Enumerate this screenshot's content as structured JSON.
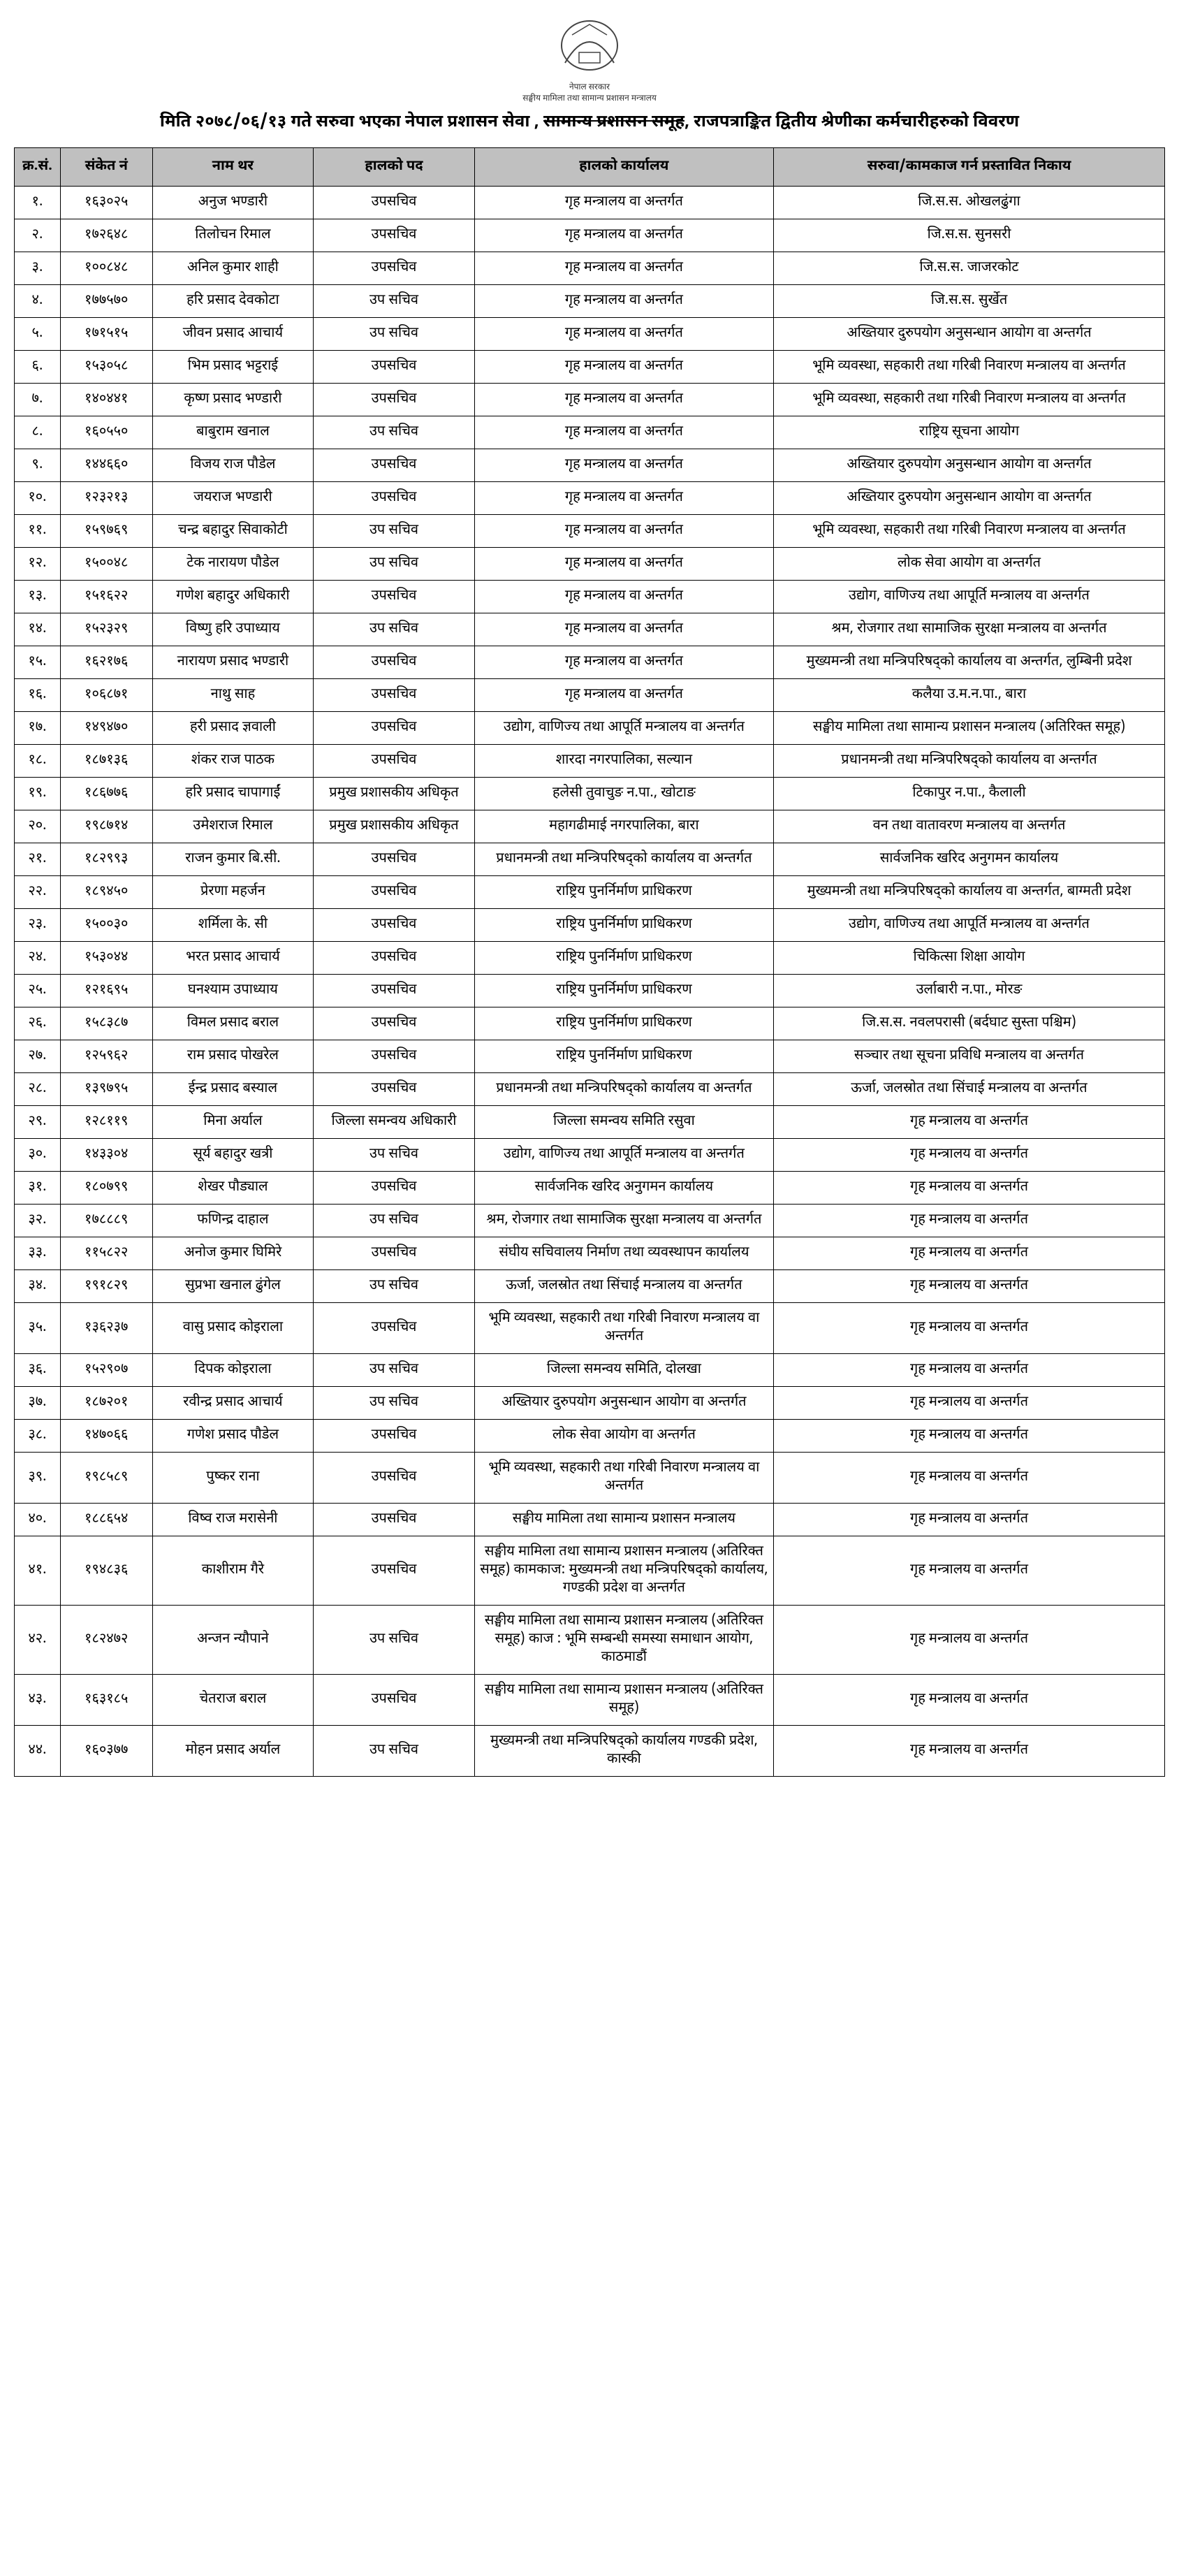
{
  "header": {
    "emblem_caption_top": "नेपाल सरकार",
    "emblem_caption_bottom": "सङ्घीय मामिला तथा सामान्य प्रशासन मन्त्रालय",
    "title_pre": "मिति २०७८/०६/१३ गते सरुवा भएका नेपाल प्रशासन सेवा , ",
    "title_strike": "सामान्य प्रशासन समूह",
    "title_post": ", राजपत्राङ्कित द्वितीय श्रेणीका कर्मचारीहरुको विवरण"
  },
  "columns": [
    "क्र.सं.",
    "संकेत नं",
    "नाम थर",
    "हालको पद",
    "हालको कार्यालय",
    "सरुवा/कामकाज गर्न प्रस्तावित निकाय"
  ],
  "rows": [
    {
      "sn": "१.",
      "code": "१६३०२५",
      "name": "अनुज भण्डारी",
      "post": "उपसचिव",
      "office": "गृह मन्त्रालय वा अन्तर्गत",
      "transfer": "जि.स.स. ओखलढुंगा"
    },
    {
      "sn": "२.",
      "code": "१७२६४८",
      "name": "तिलोचन रिमाल",
      "post": "उपसचिव",
      "office": "गृह मन्त्रालय वा अन्तर्गत",
      "transfer": "जि.स.स. सुनसरी"
    },
    {
      "sn": "३.",
      "code": "१००८४८",
      "name": "अनिल कुमार शाही",
      "post": "उपसचिव",
      "office": "गृह मन्त्रालय वा अन्तर्गत",
      "transfer": "जि.स.स. जाजरकोट"
    },
    {
      "sn": "४.",
      "code": "१७७५७०",
      "name": "हरि प्रसाद देवकोटा",
      "post": "उप सचिव",
      "office": "गृह मन्त्रालय वा अन्तर्गत",
      "transfer": "जि.स.स. सुर्खेत"
    },
    {
      "sn": "५.",
      "code": "१७१५१५",
      "name": "जीवन प्रसाद आचार्य",
      "post": "उप सचिव",
      "office": "गृह मन्त्रालय वा अन्तर्गत",
      "transfer": "अख्तियार दुरुपयोग अनुसन्धान आयोग वा अन्तर्गत"
    },
    {
      "sn": "६.",
      "code": "१५३०५८",
      "name": "भिम प्रसाद भट्टराई",
      "post": "उपसचिव",
      "office": "गृह मन्त्रालय वा अन्तर्गत",
      "transfer": "भूमि व्यवस्था, सहकारी तथा गरिबी निवारण मन्त्रालय वा अन्तर्गत"
    },
    {
      "sn": "७.",
      "code": "१४०४४१",
      "name": "कृष्ण प्रसाद भण्डारी",
      "post": "उपसचिव",
      "office": "गृह मन्त्रालय वा अन्तर्गत",
      "transfer": "भूमि व्यवस्था, सहकारी तथा गरिबी निवारण मन्त्रालय वा अन्तर्गत"
    },
    {
      "sn": "८.",
      "code": "१६०५५०",
      "name": "बाबुराम खनाल",
      "post": "उप सचिव",
      "office": "गृह मन्त्रालय वा अन्तर्गत",
      "transfer": "राष्ट्रिय सूचना आयोग"
    },
    {
      "sn": "९.",
      "code": "१४४६६०",
      "name": "विजय राज पौडेल",
      "post": "उपसचिव",
      "office": "गृह मन्त्रालय वा अन्तर्गत",
      "transfer": "अख्तियार दुरुपयोग अनुसन्धान आयोग वा अन्तर्गत"
    },
    {
      "sn": "१०.",
      "code": "१२३२१३",
      "name": "जयराज भण्डारी",
      "post": "उपसचिव",
      "office": "गृह मन्त्रालय वा अन्तर्गत",
      "transfer": "अख्तियार दुरुपयोग अनुसन्धान आयोग वा अन्तर्गत"
    },
    {
      "sn": "११.",
      "code": "१५९७६९",
      "name": "चन्द्र बहादुर सिवाकोटी",
      "post": "उप सचिव",
      "office": "गृह मन्त्रालय वा अन्तर्गत",
      "transfer": "भूमि व्यवस्था, सहकारी तथा गरिबी निवारण मन्त्रालय वा अन्तर्गत"
    },
    {
      "sn": "१२.",
      "code": "१५००४८",
      "name": "टेक नारायण पौडेल",
      "post": "उप सचिव",
      "office": "गृह मन्त्रालय वा अन्तर्गत",
      "transfer": "लोक सेवा आयोग वा अन्तर्गत"
    },
    {
      "sn": "१३.",
      "code": "१५१६२२",
      "name": "गणेश बहादुर अधिकारी",
      "post": "उपसचिव",
      "office": "गृह मन्त्रालय वा अन्तर्गत",
      "transfer": "उद्योग, वाणिज्य तथा आपूर्ति मन्त्रालय वा अन्तर्गत"
    },
    {
      "sn": "१४.",
      "code": "१५२३२९",
      "name": "विष्णु हरि उपाध्याय",
      "post": "उप सचिव",
      "office": "गृह मन्त्रालय वा अन्तर्गत",
      "transfer": "श्रम, रोजगार तथा सामाजिक सुरक्षा मन्त्रालय वा अन्तर्गत"
    },
    {
      "sn": "१५.",
      "code": "१६२१७६",
      "name": "नारायण प्रसाद भण्डारी",
      "post": "उपसचिव",
      "office": "गृह मन्त्रालय वा अन्तर्गत",
      "transfer": "मुख्यमन्त्री तथा मन्त्रिपरिषद्‌को कार्यालय वा अन्तर्गत, लुम्बिनी प्रदेश"
    },
    {
      "sn": "१६.",
      "code": "१०६८७१",
      "name": "नाथु साह",
      "post": "उपसचिव",
      "office": "गृह मन्त्रालय वा अन्तर्गत",
      "transfer": "कलैया उ.म.न.पा., बारा"
    },
    {
      "sn": "१७.",
      "code": "१४९४७०",
      "name": "हरी प्रसाद ज्ञवाली",
      "post": "उपसचिव",
      "office": "उद्योग, वाणिज्य तथा आपूर्ति मन्त्रालय वा अन्तर्गत",
      "transfer": "सङ्घीय मामिला तथा सामान्य प्रशासन मन्त्रालय (अतिरिक्त समूह)"
    },
    {
      "sn": "१८.",
      "code": "१८७१३६",
      "name": "शंकर राज पाठक",
      "post": "उपसचिव",
      "office": "शारदा नगरपालिका, सल्यान",
      "transfer": "प्रधानमन्त्री तथा मन्त्रिपरिषद्‌को कार्यालय वा अन्तर्गत"
    },
    {
      "sn": "१९.",
      "code": "१८६७७६",
      "name": "हरि प्रसाद चापागाईं",
      "post": "प्रमुख प्रशासकीय अधिकृत",
      "office": "हलेसी तुवाचुङ न.पा., खोटाङ",
      "transfer": "टिकापुर न.पा., कैलाली"
    },
    {
      "sn": "२०.",
      "code": "१९८७१४",
      "name": "उमेशराज रिमाल",
      "post": "प्रमुख प्रशासकीय अधिकृत",
      "office": "महागढीमाई नगरपालिका, बारा",
      "transfer": "वन तथा वातावरण मन्त्रालय वा अन्तर्गत"
    },
    {
      "sn": "२१.",
      "code": "१८२९९३",
      "name": "राजन कुमार बि.सी.",
      "post": "उपसचिव",
      "office": "प्रधानमन्त्री तथा मन्त्रिपरिषद्‌को कार्यालय वा अन्तर्गत",
      "transfer": "सार्वजनिक खरिद अनुगमन कार्यालय"
    },
    {
      "sn": "२२.",
      "code": "१८९४५०",
      "name": "प्रेरणा महर्जन",
      "post": "उपसचिव",
      "office": "राष्ट्रिय पुनर्निर्माण प्राधिकरण",
      "transfer": "मुख्यमन्त्री तथा मन्त्रिपरिषद्‌को कार्यालय वा अन्तर्गत, बाग्मती प्रदेश"
    },
    {
      "sn": "२३.",
      "code": "१५००३०",
      "name": "शर्मिला के. सी",
      "post": "उपसचिव",
      "office": "राष्ट्रिय पुनर्निर्माण प्राधिकरण",
      "transfer": "उद्योग, वाणिज्य तथा आपूर्ति मन्त्रालय वा अन्तर्गत"
    },
    {
      "sn": "२४.",
      "code": "१५३०४४",
      "name": "भरत प्रसाद आचार्य",
      "post": "उपसचिव",
      "office": "राष्ट्रिय पुनर्निर्माण प्राधिकरण",
      "transfer": "चिकित्सा शिक्षा आयोग"
    },
    {
      "sn": "२५.",
      "code": "१२१६९५",
      "name": "घनश्याम उपाध्याय",
      "post": "उपसचिव",
      "office": "राष्ट्रिय पुनर्निर्माण प्राधिकरण",
      "transfer": "उर्लाबारी न.पा., मोरङ"
    },
    {
      "sn": "२६.",
      "code": "१५८३८७",
      "name": "विमल प्रसाद बराल",
      "post": "उपसचिव",
      "office": "राष्ट्रिय पुनर्निर्माण प्राधिकरण",
      "transfer": "जि.स.स. नवलपरासी (बर्दघाट सुस्ता पश्चिम)"
    },
    {
      "sn": "२७.",
      "code": "१२५९६२",
      "name": "राम प्रसाद पोखरेल",
      "post": "उपसचिव",
      "office": "राष्ट्रिय पुनर्निर्माण प्राधिकरण",
      "transfer": "सञ्चार तथा सूचना प्रविधि मन्त्रालय वा अन्तर्गत"
    },
    {
      "sn": "२८.",
      "code": "१३९७९५",
      "name": "ईन्द्र प्रसाद बस्याल",
      "post": "उपसचिव",
      "office": "प्रधानमन्त्री तथा मन्त्रिपरिषद्‌को कार्यालय वा अन्तर्गत",
      "transfer": "ऊर्जा, जलस्रोत तथा सिंचाई मन्त्रालय वा अन्तर्गत"
    },
    {
      "sn": "२९.",
      "code": "१२८११९",
      "name": "मिना अर्याल",
      "post": "जिल्ला समन्वय अधिकारी",
      "office": "जिल्ला समन्वय समिति रसुवा",
      "transfer": "गृह मन्त्रालय वा अन्तर्गत"
    },
    {
      "sn": "३०.",
      "code": "१४३३०४",
      "name": "सूर्य बहादुर खत्री",
      "post": "उप सचिव",
      "office": "उद्योग, वाणिज्य तथा आपूर्ति मन्त्रालय वा अन्तर्गत",
      "transfer": "गृह मन्त्रालय वा अन्तर्गत"
    },
    {
      "sn": "३१.",
      "code": "१८०७९९",
      "name": "शेखर पौड्याल",
      "post": "उपसचिव",
      "office": "सार्वजनिक खरिद अनुगमन कार्यालय",
      "transfer": "गृह मन्त्रालय वा अन्तर्गत"
    },
    {
      "sn": "३२.",
      "code": "१७८८८९",
      "name": "फणिन्द्र दाहाल",
      "post": "उप सचिव",
      "office": "श्रम, रोजगार तथा सामाजिक सुरक्षा मन्त्रालय वा अन्तर्गत",
      "transfer": "गृह मन्त्रालय वा अन्तर्गत"
    },
    {
      "sn": "३३.",
      "code": "११५८२२",
      "name": "अनोज कुमार घिमिरे",
      "post": "उपसचिव",
      "office": "संघीय सचिवालय निर्माण तथा व्यवस्थापन कार्यालय",
      "transfer": "गृह मन्त्रालय वा अन्तर्गत"
    },
    {
      "sn": "३४.",
      "code": "१९१८२९",
      "name": "सुप्रभा खनाल ढुंगेल",
      "post": "उप सचिव",
      "office": "ऊर्जा, जलस्रोत तथा सिंचाई मन्त्रालय वा अन्तर्गत",
      "transfer": "गृह मन्त्रालय वा अन्तर्गत"
    },
    {
      "sn": "३५.",
      "code": "१३६२३७",
      "name": "वासु प्रसाद कोइराला",
      "post": "उपसचिव",
      "office": "भूमि व्यवस्था, सहकारी तथा गरिबी निवारण मन्त्रालय वा अन्तर्गत",
      "transfer": "गृह मन्त्रालय वा अन्तर्गत"
    },
    {
      "sn": "३६.",
      "code": "१५२९०७",
      "name": "दिपक कोइराला",
      "post": "उप सचिव",
      "office": "जिल्ला समन्वय समिति, दोलखा",
      "transfer": "गृह मन्त्रालय वा अन्तर्गत"
    },
    {
      "sn": "३७.",
      "code": "१८७२०१",
      "name": "रवीन्द्र प्रसाद आचार्य",
      "post": "उप सचिव",
      "office": "अख्तियार दुरुपयोग अनुसन्धान आयोग वा अन्तर्गत",
      "transfer": "गृह मन्त्रालय वा अन्तर्गत"
    },
    {
      "sn": "३८.",
      "code": "१४७०६६",
      "name": "गणेश प्रसाद पौडेल",
      "post": "उपसचिव",
      "office": "लोक सेवा आयोग वा अन्तर्गत",
      "transfer": "गृह मन्त्रालय वा अन्तर्गत"
    },
    {
      "sn": "३९.",
      "code": "१९८५८९",
      "name": "पुष्कर राना",
      "post": "उपसचिव",
      "office": "भूमि व्यवस्था, सहकारी तथा गरिबी निवारण मन्त्रालय वा अन्तर्गत",
      "transfer": "गृह मन्त्रालय वा अन्तर्गत"
    },
    {
      "sn": "४०.",
      "code": "१८८६५४",
      "name": "विष्व राज मरासेनी",
      "post": "उपसचिव",
      "office": "सङ्घीय मामिला तथा सामान्य प्रशासन मन्त्रालय",
      "transfer": "गृह मन्त्रालय वा अन्तर्गत"
    },
    {
      "sn": "४१.",
      "code": "१९४८३६",
      "name": "काशीराम गैरे",
      "post": "उपसचिव",
      "office": "सङ्घीय मामिला तथा सामान्य प्रशासन मन्त्रालय (अतिरिक्त समूह) कामकाज: मुख्यमन्त्री तथा मन्त्रिपरिषद्‌को कार्यालय, गण्डकी प्रदेश वा अन्तर्गत",
      "transfer": "गृह मन्त्रालय वा अन्तर्गत"
    },
    {
      "sn": "४२.",
      "code": "१८२४७२",
      "name": "अन्जन न्यौपाने",
      "post": "उप सचिव",
      "office": "सङ्घीय मामिला तथा सामान्य प्रशासन मन्त्रालय (अतिरिक्त समूह) काज : भूमि सम्बन्धी समस्या समाधान आयोग, काठमाडौं",
      "transfer": "गृह मन्त्रालय वा अन्तर्गत"
    },
    {
      "sn": "४३.",
      "code": "१६३१८५",
      "name": "चेतराज बराल",
      "post": "उपसचिव",
      "office": "सङ्घीय मामिला तथा सामान्य प्रशासन मन्त्रालय (अतिरिक्त समूह)",
      "transfer": "गृह मन्त्रालय वा अन्तर्गत"
    },
    {
      "sn": "४४.",
      "code": "१६०३७७",
      "name": "मोहन प्रसाद अर्याल",
      "post": "उप सचिव",
      "office": "मुख्यमन्त्री तथा मन्त्रिपरिषद्‌को कार्यालय गण्डकी प्रदेश, कास्की",
      "transfer": "गृह मन्त्रालय वा अन्तर्गत"
    }
  ],
  "style": {
    "header_bg": "#c0c0c0",
    "border_color": "#000000",
    "font_size_body": 20,
    "font_size_header": 24
  }
}
